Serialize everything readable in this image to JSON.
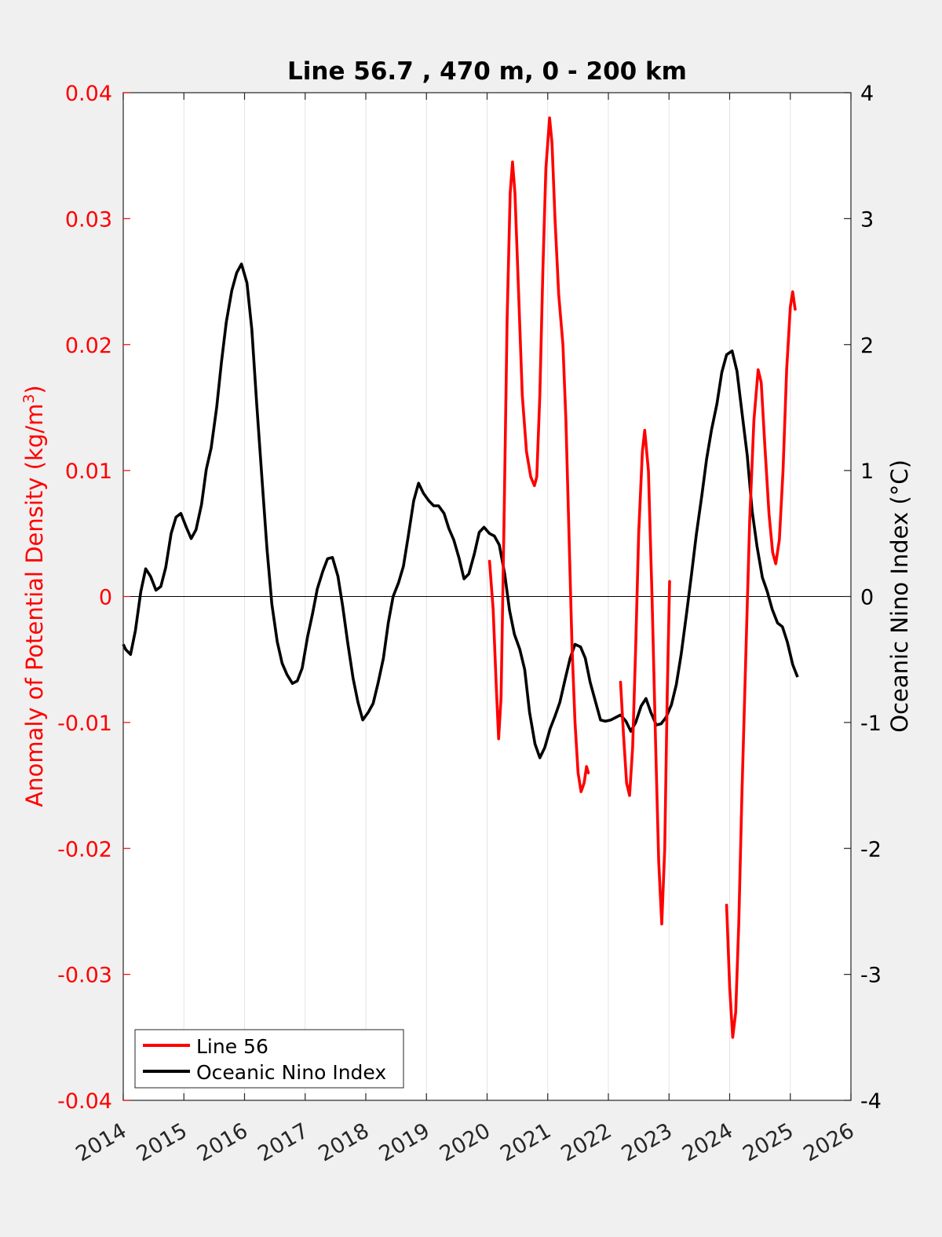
{
  "chart_data": {
    "type": "line",
    "title": "Line 56.7 , 470 m, 0 - 200 km",
    "xlabel": "",
    "ylabel_left_text": "Anomaly of Potential Density (kg/m",
    "ylabel_left_sup": "3",
    "ylabel_left_close": ")",
    "ylabel_right": "Oceanic Nino Index (°C)",
    "xlim": [
      2014,
      2026
    ],
    "ylim_left": [
      -0.04,
      0.04
    ],
    "ylim_right": [
      -4,
      4
    ],
    "x_ticks": [
      2014,
      2015,
      2016,
      2017,
      2018,
      2019,
      2020,
      2021,
      2022,
      2023,
      2024,
      2025,
      2026
    ],
    "x_tick_labels": [
      "2014",
      "2015",
      "2016",
      "2017",
      "2018",
      "2019",
      "2020",
      "2021",
      "2022",
      "2023",
      "2024",
      "2025",
      "2026"
    ],
    "y_left_ticks": [
      0.04,
      0.03,
      0.02,
      0.01,
      0,
      -0.01,
      -0.02,
      -0.03,
      -0.04
    ],
    "y_left_tick_labels": [
      "0.04",
      "0.03",
      "0.02",
      "0.01",
      "0",
      "-0.01",
      "-0.02",
      "-0.03",
      "-0.04"
    ],
    "y_right_ticks": [
      4,
      3,
      2,
      1,
      0,
      -1,
      -2,
      -3,
      -4
    ],
    "y_right_tick_labels": [
      "4",
      "3",
      "2",
      "1",
      "0",
      "-1",
      "-2",
      "-3",
      "-4"
    ],
    "grid": "vertical",
    "legend_position": "bottom-left",
    "colors": {
      "line56": "#ff0000",
      "oni": "#000000",
      "left_axis": "#ff0000",
      "right_axis": "#000000"
    },
    "series": [
      {
        "name": "Line 56",
        "axis": "left",
        "segments": [
          [
            [
              2020.04,
              0.0028
            ],
            [
              2020.1,
              -0.001
            ],
            [
              2020.15,
              -0.007
            ],
            [
              2020.19,
              -0.0113
            ],
            [
              2020.23,
              -0.008
            ],
            [
              2020.28,
              0.006
            ],
            [
              2020.33,
              0.022
            ],
            [
              2020.38,
              0.032
            ],
            [
              2020.42,
              0.0345
            ],
            [
              2020.46,
              0.032
            ],
            [
              2020.52,
              0.024
            ],
            [
              2020.58,
              0.016
            ],
            [
              2020.65,
              0.0115
            ],
            [
              2020.72,
              0.0095
            ],
            [
              2020.78,
              0.0088
            ],
            [
              2020.82,
              0.0095
            ],
            [
              2020.87,
              0.016
            ],
            [
              2020.92,
              0.026
            ],
            [
              2020.97,
              0.034
            ],
            [
              2021.03,
              0.038
            ],
            [
              2021.07,
              0.036
            ],
            [
              2021.12,
              0.03
            ],
            [
              2021.18,
              0.024
            ],
            [
              2021.25,
              0.02
            ],
            [
              2021.3,
              0.014
            ],
            [
              2021.35,
              0.005
            ],
            [
              2021.4,
              -0.004
            ],
            [
              2021.45,
              -0.01
            ],
            [
              2021.5,
              -0.014
            ],
            [
              2021.55,
              -0.0155
            ],
            [
              2021.6,
              -0.0148
            ],
            [
              2021.64,
              -0.0135
            ],
            [
              2021.67,
              -0.014
            ]
          ],
          [
            [
              2022.2,
              -0.0068
            ],
            [
              2022.25,
              -0.011
            ],
            [
              2022.3,
              -0.0148
            ],
            [
              2022.35,
              -0.0158
            ],
            [
              2022.4,
              -0.012
            ],
            [
              2022.45,
              -0.004
            ],
            [
              2022.5,
              0.005
            ],
            [
              2022.56,
              0.0115
            ],
            [
              2022.6,
              0.0132
            ],
            [
              2022.66,
              0.01
            ],
            [
              2022.72,
              0.0
            ],
            [
              2022.78,
              -0.012
            ],
            [
              2022.83,
              -0.021
            ],
            [
              2022.88,
              -0.026
            ],
            [
              2022.93,
              -0.02
            ],
            [
              2022.97,
              -0.008
            ],
            [
              2023.01,
              0.0012
            ]
          ],
          [
            [
              2023.95,
              -0.0245
            ],
            [
              2024.0,
              -0.031
            ],
            [
              2024.05,
              -0.035
            ],
            [
              2024.1,
              -0.033
            ],
            [
              2024.15,
              -0.026
            ],
            [
              2024.2,
              -0.016
            ],
            [
              2024.27,
              -0.004
            ],
            [
              2024.33,
              0.006
            ],
            [
              2024.4,
              0.014
            ],
            [
              2024.47,
              0.018
            ],
            [
              2024.52,
              0.017
            ],
            [
              2024.58,
              0.012
            ],
            [
              2024.65,
              0.0065
            ],
            [
              2024.71,
              0.0035
            ],
            [
              2024.76,
              0.0026
            ],
            [
              2024.82,
              0.0045
            ],
            [
              2024.88,
              0.01
            ],
            [
              2024.94,
              0.018
            ],
            [
              2025.0,
              0.023
            ],
            [
              2025.04,
              0.0242
            ],
            [
              2025.08,
              0.0228
            ]
          ]
        ]
      },
      {
        "name": "Oceanic Nino Index",
        "axis": "right",
        "points": [
          [
            2014.0,
            -0.38
          ],
          [
            2014.04,
            -0.42
          ],
          [
            2014.12,
            -0.46
          ],
          [
            2014.2,
            -0.27
          ],
          [
            2014.29,
            0.04
          ],
          [
            2014.37,
            0.22
          ],
          [
            2014.45,
            0.16
          ],
          [
            2014.54,
            0.05
          ],
          [
            2014.62,
            0.08
          ],
          [
            2014.7,
            0.23
          ],
          [
            2014.79,
            0.5
          ],
          [
            2014.87,
            0.63
          ],
          [
            2014.95,
            0.66
          ],
          [
            2015.04,
            0.55
          ],
          [
            2015.12,
            0.46
          ],
          [
            2015.2,
            0.53
          ],
          [
            2015.29,
            0.73
          ],
          [
            2015.37,
            1.01
          ],
          [
            2015.45,
            1.18
          ],
          [
            2015.54,
            1.5
          ],
          [
            2015.62,
            1.86
          ],
          [
            2015.7,
            2.18
          ],
          [
            2015.79,
            2.43
          ],
          [
            2015.87,
            2.57
          ],
          [
            2015.95,
            2.64
          ],
          [
            2016.04,
            2.49
          ],
          [
            2016.12,
            2.12
          ],
          [
            2016.2,
            1.53
          ],
          [
            2016.29,
            0.92
          ],
          [
            2016.37,
            0.38
          ],
          [
            2016.45,
            -0.06
          ],
          [
            2016.54,
            -0.36
          ],
          [
            2016.62,
            -0.53
          ],
          [
            2016.7,
            -0.62
          ],
          [
            2016.79,
            -0.69
          ],
          [
            2016.87,
            -0.67
          ],
          [
            2016.95,
            -0.57
          ],
          [
            2017.04,
            -0.32
          ],
          [
            2017.12,
            -0.14
          ],
          [
            2017.2,
            0.06
          ],
          [
            2017.29,
            0.2
          ],
          [
            2017.37,
            0.3
          ],
          [
            2017.45,
            0.31
          ],
          [
            2017.54,
            0.16
          ],
          [
            2017.62,
            -0.08
          ],
          [
            2017.7,
            -0.36
          ],
          [
            2017.79,
            -0.65
          ],
          [
            2017.87,
            -0.84
          ],
          [
            2017.95,
            -0.98
          ],
          [
            2018.04,
            -0.92
          ],
          [
            2018.12,
            -0.85
          ],
          [
            2018.2,
            -0.69
          ],
          [
            2018.29,
            -0.49
          ],
          [
            2018.37,
            -0.21
          ],
          [
            2018.45,
            0.0
          ],
          [
            2018.54,
            0.11
          ],
          [
            2018.62,
            0.24
          ],
          [
            2018.7,
            0.48
          ],
          [
            2018.79,
            0.76
          ],
          [
            2018.87,
            0.9
          ],
          [
            2018.95,
            0.82
          ],
          [
            2019.04,
            0.76
          ],
          [
            2019.12,
            0.72
          ],
          [
            2019.2,
            0.72
          ],
          [
            2019.29,
            0.66
          ],
          [
            2019.37,
            0.54
          ],
          [
            2019.45,
            0.45
          ],
          [
            2019.54,
            0.3
          ],
          [
            2019.62,
            0.14
          ],
          [
            2019.7,
            0.18
          ],
          [
            2019.79,
            0.34
          ],
          [
            2019.87,
            0.51
          ],
          [
            2019.95,
            0.55
          ],
          [
            2020.04,
            0.5
          ],
          [
            2020.12,
            0.48
          ],
          [
            2020.2,
            0.41
          ],
          [
            2020.29,
            0.18
          ],
          [
            2020.37,
            -0.11
          ],
          [
            2020.45,
            -0.3
          ],
          [
            2020.54,
            -0.42
          ],
          [
            2020.62,
            -0.58
          ],
          [
            2020.7,
            -0.92
          ],
          [
            2020.79,
            -1.17
          ],
          [
            2020.87,
            -1.28
          ],
          [
            2020.95,
            -1.2
          ],
          [
            2021.04,
            -1.05
          ],
          [
            2021.12,
            -0.95
          ],
          [
            2021.2,
            -0.84
          ],
          [
            2021.29,
            -0.65
          ],
          [
            2021.37,
            -0.49
          ],
          [
            2021.45,
            -0.38
          ],
          [
            2021.54,
            -0.4
          ],
          [
            2021.62,
            -0.49
          ],
          [
            2021.7,
            -0.68
          ],
          [
            2021.79,
            -0.84
          ],
          [
            2021.87,
            -0.98
          ],
          [
            2021.95,
            -0.99
          ],
          [
            2022.04,
            -0.98
          ],
          [
            2022.12,
            -0.96
          ],
          [
            2022.2,
            -0.94
          ],
          [
            2022.29,
            -0.99
          ],
          [
            2022.37,
            -1.07
          ],
          [
            2022.45,
            -1.0
          ],
          [
            2022.54,
            -0.87
          ],
          [
            2022.62,
            -0.81
          ],
          [
            2022.7,
            -0.92
          ],
          [
            2022.79,
            -1.02
          ],
          [
            2022.87,
            -1.01
          ],
          [
            2022.95,
            -0.96
          ],
          [
            2023.04,
            -0.86
          ],
          [
            2023.12,
            -0.7
          ],
          [
            2023.2,
            -0.46
          ],
          [
            2023.29,
            -0.13
          ],
          [
            2023.37,
            0.17
          ],
          [
            2023.45,
            0.49
          ],
          [
            2023.54,
            0.8
          ],
          [
            2023.62,
            1.09
          ],
          [
            2023.7,
            1.32
          ],
          [
            2023.79,
            1.53
          ],
          [
            2023.87,
            1.78
          ],
          [
            2023.95,
            1.92
          ],
          [
            2024.04,
            1.95
          ],
          [
            2024.12,
            1.79
          ],
          [
            2024.2,
            1.47
          ],
          [
            2024.29,
            1.12
          ],
          [
            2024.37,
            0.68
          ],
          [
            2024.45,
            0.4
          ],
          [
            2024.54,
            0.15
          ],
          [
            2024.62,
            0.04
          ],
          [
            2024.7,
            -0.1
          ],
          [
            2024.79,
            -0.21
          ],
          [
            2024.87,
            -0.24
          ],
          [
            2024.95,
            -0.36
          ],
          [
            2025.04,
            -0.54
          ],
          [
            2025.12,
            -0.64
          ]
        ]
      }
    ]
  }
}
